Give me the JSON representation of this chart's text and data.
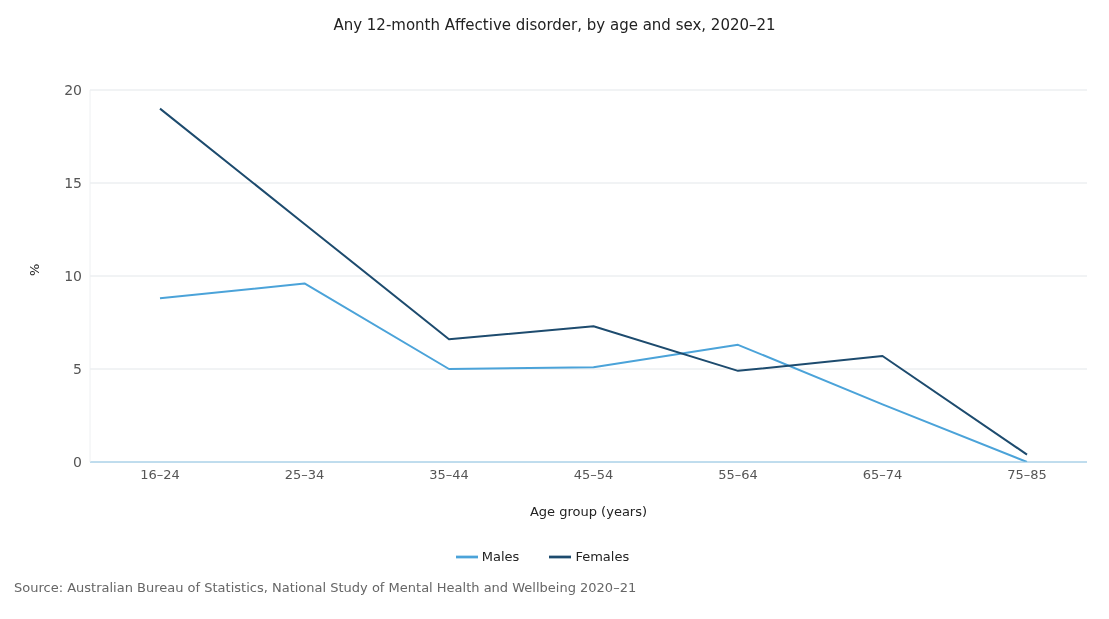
{
  "chart_data": {
    "type": "line",
    "title": "Any 12-month Affective disorder, by age and sex, 2020–21",
    "xlabel": "Age group (years)",
    "ylabel": "%",
    "categories": [
      "16–24",
      "25–34",
      "35–44",
      "45–54",
      "55–64",
      "65–74",
      "75–85"
    ],
    "series": [
      {
        "name": "Males",
        "color": "#4ba3d9",
        "values": [
          8.8,
          9.6,
          5.0,
          5.1,
          6.3,
          3.1,
          0.0
        ]
      },
      {
        "name": "Females",
        "color": "#1d4b6e",
        "values": [
          19.0,
          12.8,
          6.6,
          7.3,
          4.9,
          5.7,
          0.4
        ]
      }
    ],
    "ylim": [
      0,
      20
    ],
    "yticks": [
      0,
      5,
      10,
      15,
      20
    ],
    "grid": "y",
    "legend": "bottom",
    "marker": "none",
    "line_style": "solid",
    "annotations": [
      "Source: Australian Bureau of Statistics, National Study of Mental Health and Wellbeing 2020–21"
    ]
  }
}
